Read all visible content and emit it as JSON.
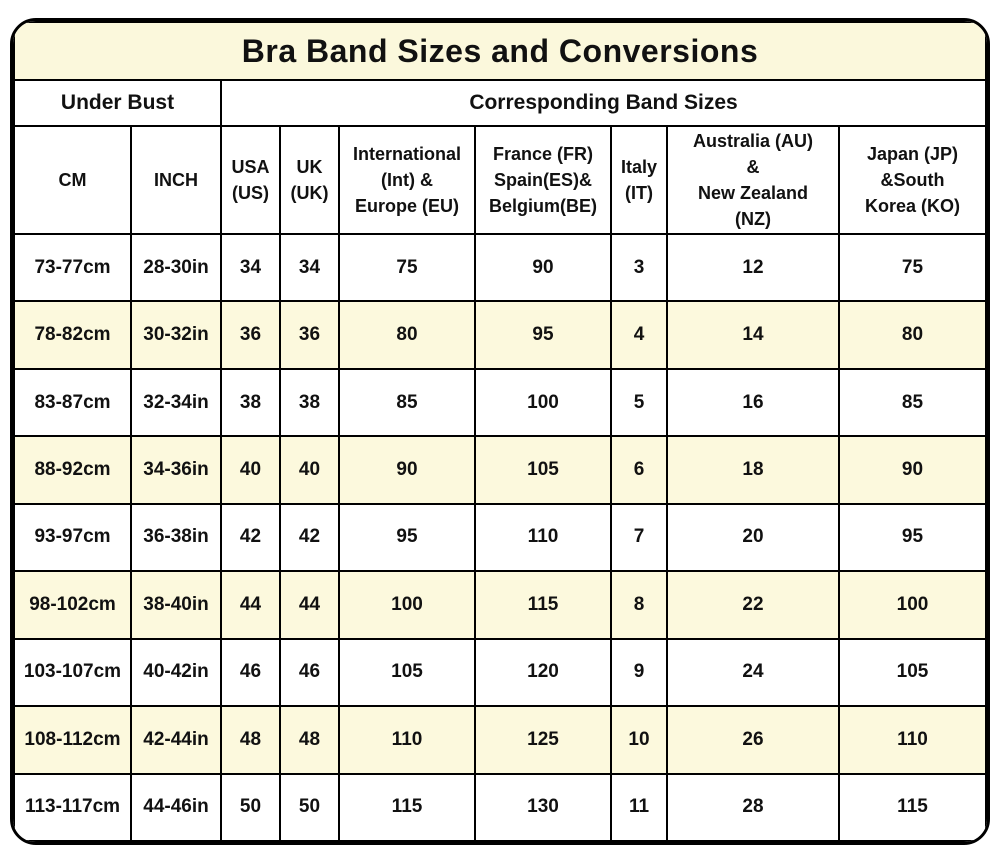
{
  "chart_data": {
    "type": "table",
    "title": "Bra Band Sizes and Conversions",
    "group_headers": {
      "under_bust": "Under Bust",
      "corresponding": "Corresponding Band Sizes"
    },
    "columns": [
      {
        "key": "cm",
        "label": "CM"
      },
      {
        "key": "inch",
        "label": "INCH"
      },
      {
        "key": "us",
        "label": "USA\n(US)"
      },
      {
        "key": "uk",
        "label": "UK\n(UK)"
      },
      {
        "key": "eu",
        "label": "International\n(Int) &\nEurope (EU)"
      },
      {
        "key": "fr",
        "label": "France (FR)\nSpain(ES)&\nBelgium(BE)"
      },
      {
        "key": "it",
        "label": "Italy\n(IT)"
      },
      {
        "key": "au-nz",
        "label": "Australia (AU)\n&\nNew Zealand\n(NZ)"
      },
      {
        "key": "jp-ko",
        "label": "Japan (JP)\n&South\nKorea (KO)"
      }
    ],
    "rows": [
      [
        "73-77cm",
        "28-30in",
        "34",
        "34",
        "75",
        "90",
        "3",
        "12",
        "75"
      ],
      [
        "78-82cm",
        "30-32in",
        "36",
        "36",
        "80",
        "95",
        "4",
        "14",
        "80"
      ],
      [
        "83-87cm",
        "32-34in",
        "38",
        "38",
        "85",
        "100",
        "5",
        "16",
        "85"
      ],
      [
        "88-92cm",
        "34-36in",
        "40",
        "40",
        "90",
        "105",
        "6",
        "18",
        "90"
      ],
      [
        "93-97cm",
        "36-38in",
        "42",
        "42",
        "95",
        "110",
        "7",
        "20",
        "95"
      ],
      [
        "98-102cm",
        "38-40in",
        "44",
        "44",
        "100",
        "115",
        "8",
        "22",
        "100"
      ],
      [
        "103-107cm",
        "40-42in",
        "46",
        "46",
        "105",
        "120",
        "9",
        "24",
        "105"
      ],
      [
        "108-112cm",
        "42-44in",
        "48",
        "48",
        "110",
        "125",
        "10",
        "26",
        "110"
      ],
      [
        "113-117cm",
        "44-46in",
        "50",
        "50",
        "115",
        "130",
        "11",
        "28",
        "115"
      ]
    ],
    "layout_hints": {
      "shaded_row_indices": [
        1,
        3,
        5,
        7
      ],
      "grid": "on",
      "rounded_corners": true
    },
    "colors": {
      "cream": "#FBF8DC",
      "row_alt": "#FCF9DD",
      "border": "#000000",
      "text": "#111111"
    }
  }
}
